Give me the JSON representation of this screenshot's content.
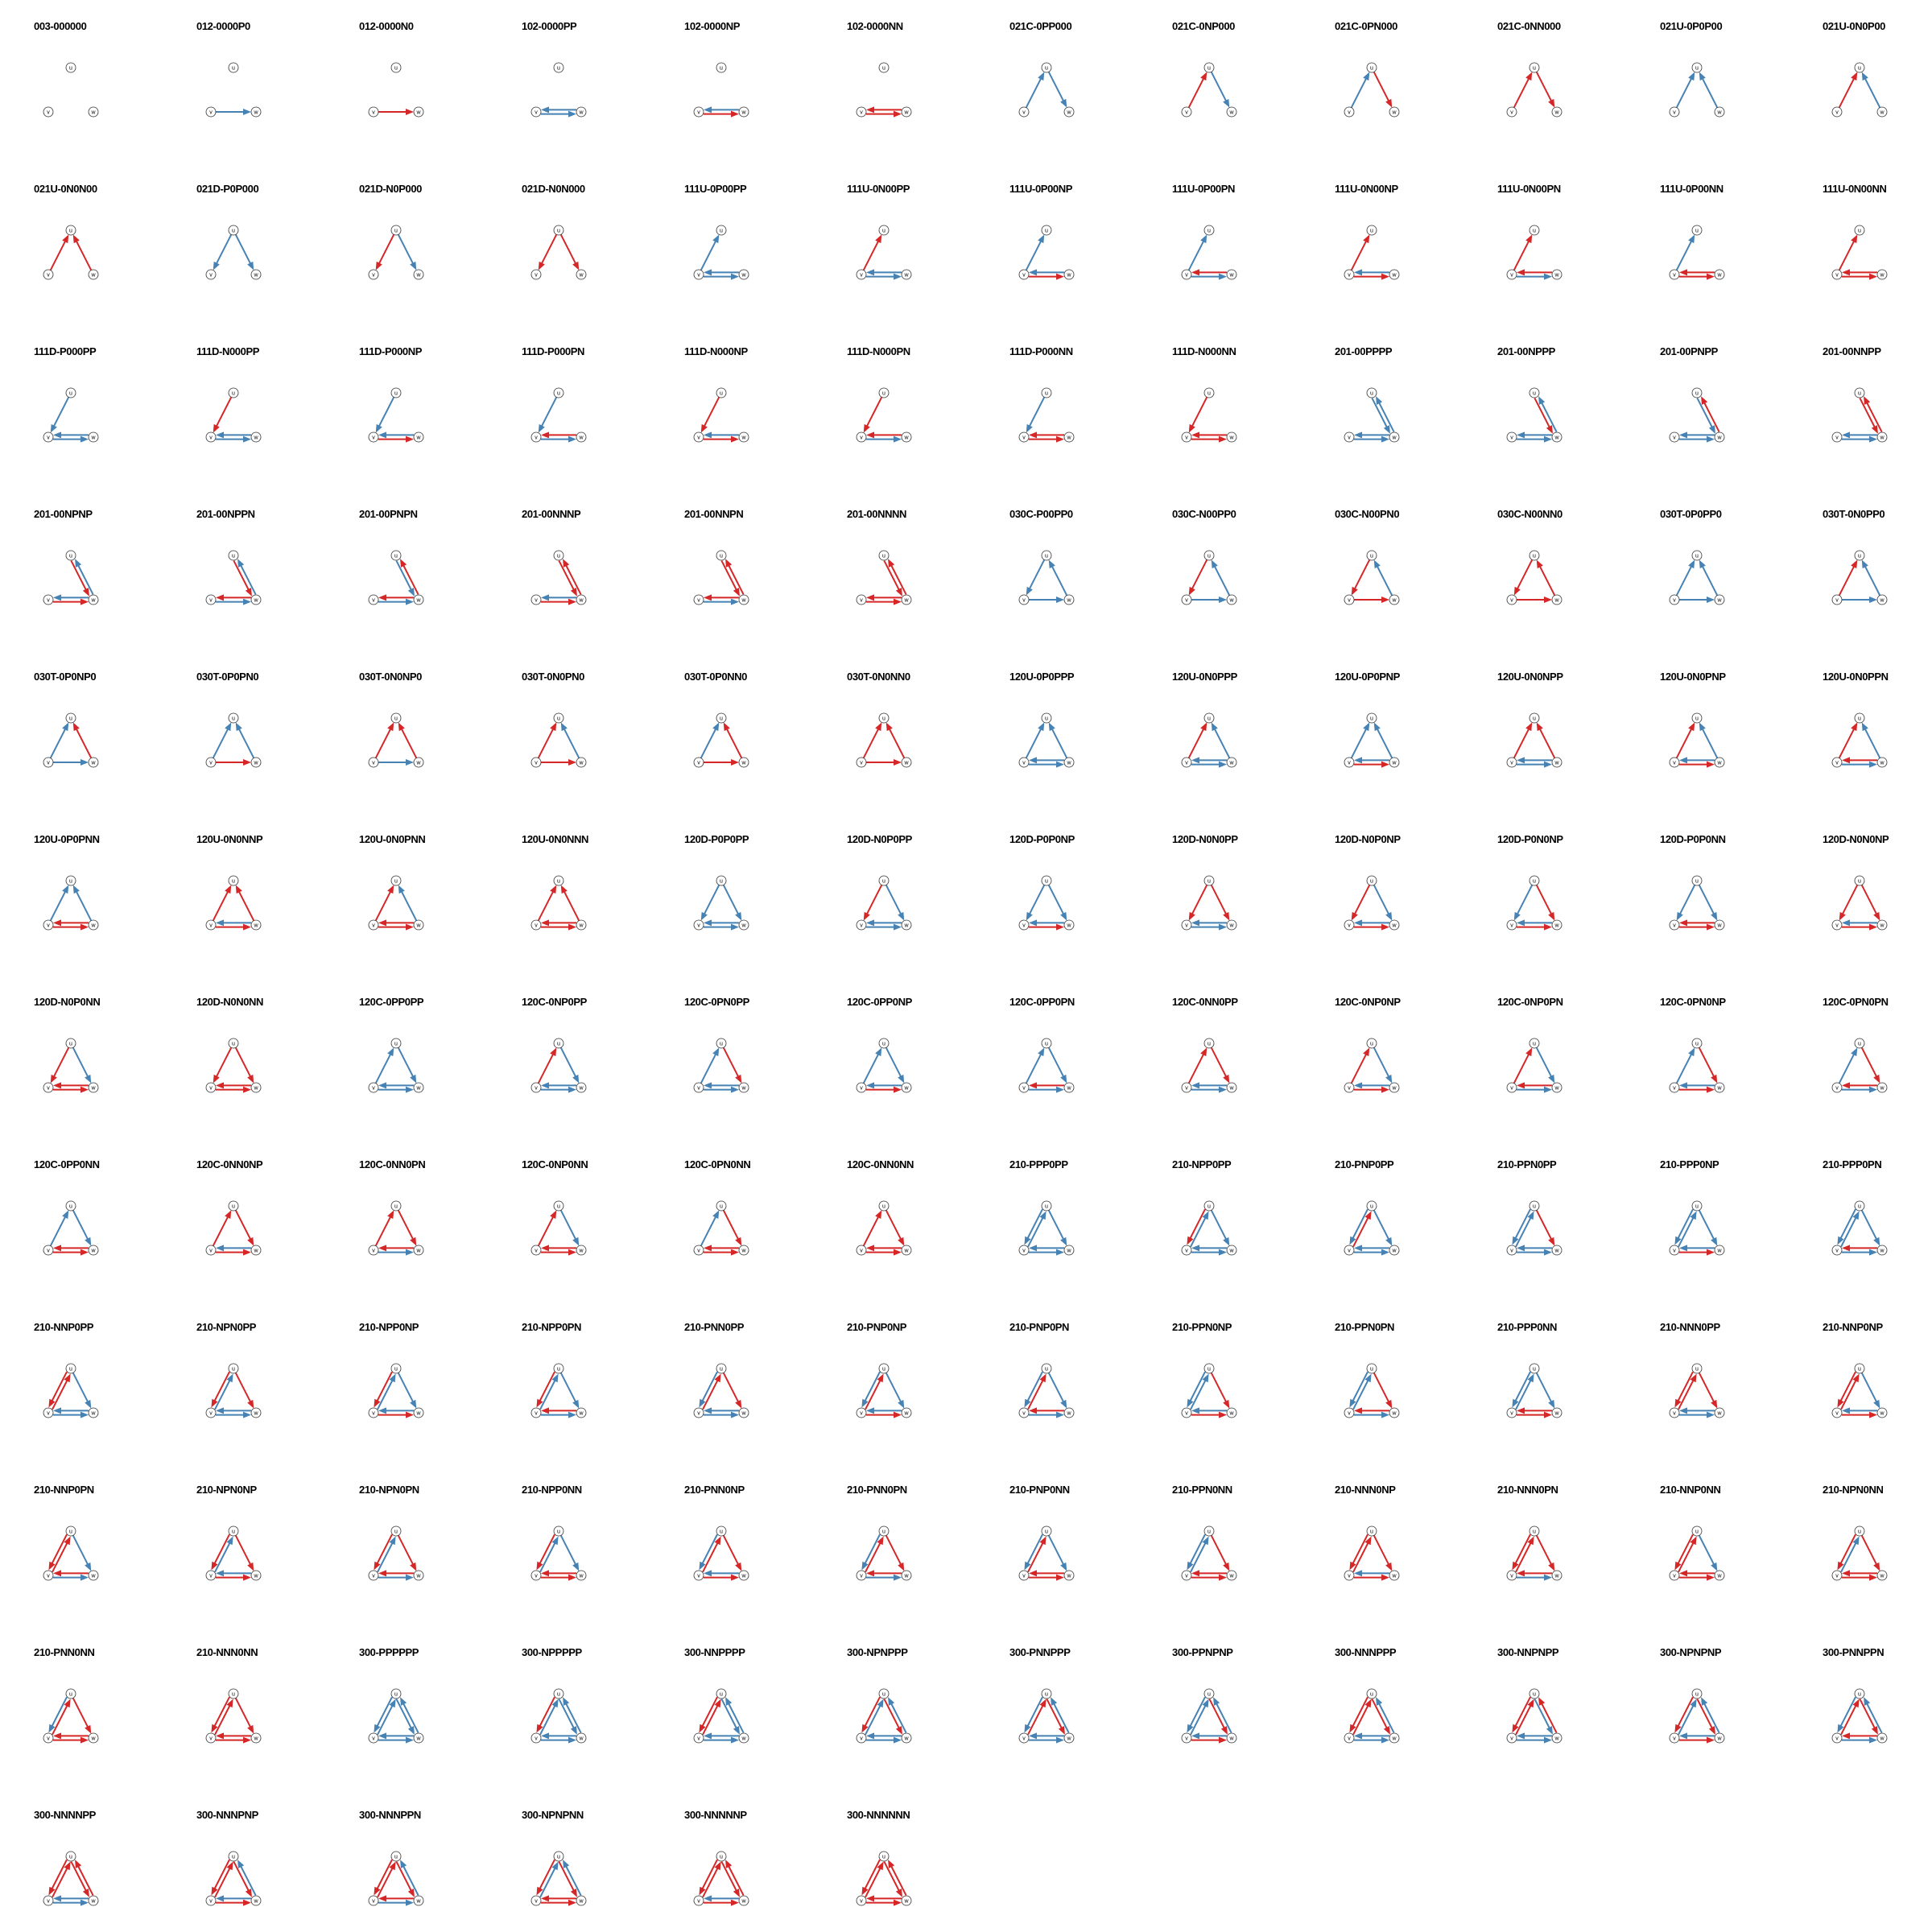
{
  "colors": {
    "positive": "#4682b4",
    "negative": "#d62728",
    "node_stroke": "#333333",
    "node_fill": "#ffffff"
  },
  "node_labels": [
    "u",
    "v",
    "w"
  ],
  "edge_code_order": [
    "u->v",
    "v->u",
    "u->w",
    "w->u",
    "v->w",
    "w->v"
  ],
  "triads": [
    "003-000000",
    "012-0000P0",
    "012-0000N0",
    "102-0000PP",
    "102-0000NP",
    "102-0000NN",
    "021C-0PP000",
    "021C-0NP000",
    "021C-0PN000",
    "021C-0NN000",
    "021U-0P0P00",
    "021U-0N0P00",
    "021U-0N0N00",
    "021D-P0P000",
    "021D-N0P000",
    "021D-N0N000",
    "111U-0P00PP",
    "111U-0N00PP",
    "111U-0P00NP",
    "111U-0P00PN",
    "111U-0N00NP",
    "111U-0N00PN",
    "111U-0P00NN",
    "111U-0N00NN",
    "111D-P000PP",
    "111D-N000PP",
    "111D-P000NP",
    "111D-P000PN",
    "111D-N000NP",
    "111D-N000PN",
    "111D-P000NN",
    "111D-N000NN",
    "201-00PPPP",
    "201-00NPPP",
    "201-00PNPP",
    "201-00NNPP",
    "201-00NPNP",
    "201-00NPPN",
    "201-00PNPN",
    "201-00NNNP",
    "201-00NNPN",
    "201-00NNNN",
    "030C-P00PP0",
    "030C-N00PP0",
    "030C-N00PN0",
    "030C-N00NN0",
    "030T-0P0PP0",
    "030T-0N0PP0",
    "030T-0P0NP0",
    "030T-0P0PN0",
    "030T-0N0NP0",
    "030T-0N0PN0",
    "030T-0P0NN0",
    "030T-0N0NN0",
    "120U-0P0PPP",
    "120U-0N0PPP",
    "120U-0P0PNP",
    "120U-0N0NPP",
    "120U-0N0PNP",
    "120U-0N0PPN",
    "120U-0P0PNN",
    "120U-0N0NNP",
    "120U-0N0PNN",
    "120U-0N0NNN",
    "120D-P0P0PP",
    "120D-N0P0PP",
    "120D-P0P0NP",
    "120D-N0N0PP",
    "120D-N0P0NP",
    "120D-P0N0NP",
    "120D-P0P0NN",
    "120D-N0N0NP",
    "120D-N0P0NN",
    "120D-N0N0NN",
    "120C-0PP0PP",
    "120C-0NP0PP",
    "120C-0PN0PP",
    "120C-0PP0NP",
    "120C-0PP0PN",
    "120C-0NN0PP",
    "120C-0NP0NP",
    "120C-0NP0PN",
    "120C-0PN0NP",
    "120C-0PN0PN",
    "120C-0PP0NN",
    "120C-0NN0NP",
    "120C-0NN0PN",
    "120C-0NP0NN",
    "120C-0PN0NN",
    "120C-0NN0NN",
    "210-PPP0PP",
    "210-NPP0PP",
    "210-PNP0PP",
    "210-PPN0PP",
    "210-PPP0NP",
    "210-PPP0PN",
    "210-NNP0PP",
    "210-NPN0PP",
    "210-NPP0NP",
    "210-NPP0PN",
    "210-PNN0PP",
    "210-PNP0NP",
    "210-PNP0PN",
    "210-PPN0NP",
    "210-PPN0PN",
    "210-PPP0NN",
    "210-NNN0PP",
    "210-NNP0NP",
    "210-NNP0PN",
    "210-NPN0NP",
    "210-NPN0PN",
    "210-NPP0NN",
    "210-PNN0NP",
    "210-PNN0PN",
    "210-PNP0NN",
    "210-PPN0NN",
    "210-NNN0NP",
    "210-NNN0PN",
    "210-NNP0NN",
    "210-NPN0NN",
    "210-PNN0NN",
    "210-NNN0NN",
    "300-PPPPPP",
    "300-NPPPPP",
    "300-NNPPPP",
    "300-NPNPPP",
    "300-PNNPPP",
    "300-PPNPNP",
    "300-NNNPPP",
    "300-NNPNPP",
    "300-NPNPNP",
    "300-PNNPPN",
    "300-NNNNPP",
    "300-NNNPNP",
    "300-NNNPPN",
    "300-NPNPNN",
    "300-NNNNNP",
    "300-NNNNNN"
  ]
}
